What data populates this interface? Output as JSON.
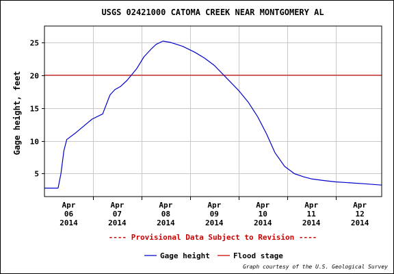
{
  "chart_data": {
    "type": "line",
    "title": "USGS 02421000 CATOMA CREEK NEAR MONTGOMERY AL",
    "xlabel": "",
    "ylabel": "Gage height, feet",
    "xlim": [
      0,
      6.95
    ],
    "ylim": [
      1.5,
      27.5
    ],
    "grid": true,
    "legend_position": "bottom",
    "x_ticks": [
      {
        "pos": 0.5,
        "lines": [
          "Apr",
          "06",
          "2014"
        ]
      },
      {
        "pos": 1.5,
        "lines": [
          "Apr",
          "07",
          "2014"
        ]
      },
      {
        "pos": 2.5,
        "lines": [
          "Apr",
          "08",
          "2014"
        ]
      },
      {
        "pos": 3.5,
        "lines": [
          "Apr",
          "09",
          "2014"
        ]
      },
      {
        "pos": 4.5,
        "lines": [
          "Apr",
          "10",
          "2014"
        ]
      },
      {
        "pos": 5.5,
        "lines": [
          "Apr",
          "11",
          "2014"
        ]
      },
      {
        "pos": 6.5,
        "lines": [
          "Apr",
          "12",
          "2014"
        ]
      }
    ],
    "y_ticks": [
      5,
      10,
      15,
      20,
      25
    ],
    "series": [
      {
        "name": "Gage height",
        "color": "#0000cc",
        "x": [
          0,
          0.28,
          0.34,
          0.4,
          0.46,
          0.64,
          0.85,
          0.98,
          1.2,
          1.35,
          1.45,
          1.57,
          1.7,
          1.9,
          2.05,
          2.2,
          2.3,
          2.44,
          2.6,
          2.85,
          3.1,
          3.3,
          3.5,
          3.75,
          4.0,
          4.2,
          4.4,
          4.58,
          4.75,
          4.95,
          5.15,
          5.35,
          5.5,
          5.75,
          6.0,
          6.3,
          6.6,
          6.95
        ],
        "y": [
          2.8,
          2.8,
          5.0,
          8.5,
          10.2,
          11.2,
          12.5,
          13.3,
          14.1,
          17.0,
          17.8,
          18.3,
          19.2,
          21.0,
          22.8,
          24.0,
          24.7,
          25.2,
          25.0,
          24.4,
          23.5,
          22.6,
          21.5,
          19.6,
          17.7,
          15.9,
          13.6,
          11.0,
          8.2,
          6.1,
          5.0,
          4.5,
          4.2,
          3.95,
          3.75,
          3.6,
          3.45,
          3.25
        ]
      },
      {
        "name": "Flood stage",
        "color": "#cc0000",
        "x": [
          0,
          6.95
        ],
        "y": [
          20,
          20
        ]
      }
    ],
    "notice": "---- Provisional Data Subject to Revision ----",
    "credit": "Graph courtesy of the U.S. Geological Survey"
  }
}
